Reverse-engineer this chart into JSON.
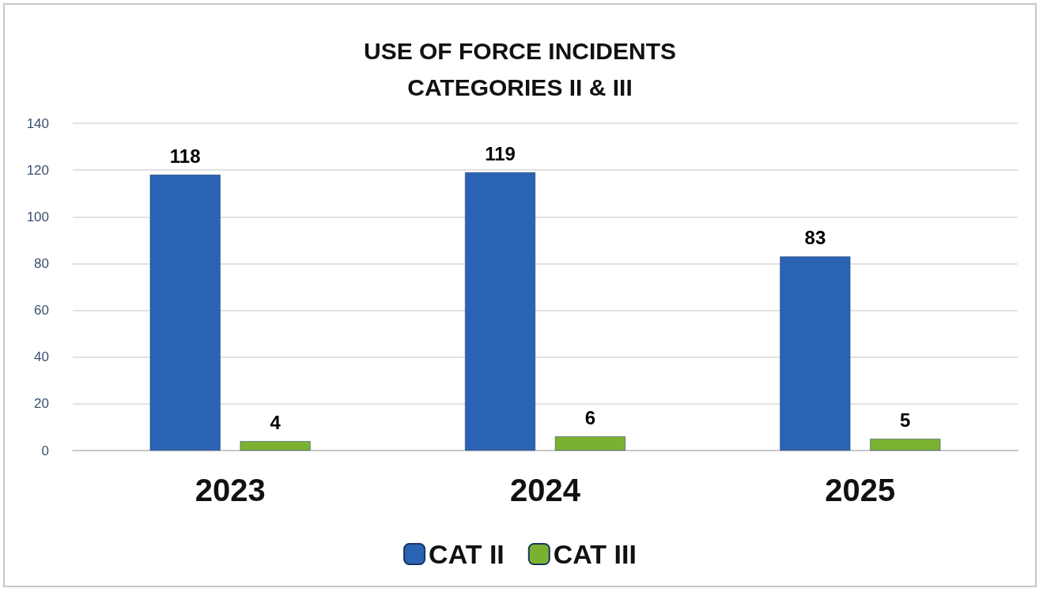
{
  "chart_data": {
    "type": "bar",
    "title": "USE OF FORCE INCIDENTS\nCATEGORIES II & III",
    "categories": [
      "2023",
      "2024",
      "2025"
    ],
    "series": [
      {
        "name": "CAT II",
        "color": "#2a63b3",
        "values": [
          118,
          119,
          83
        ]
      },
      {
        "name": "CAT III",
        "color": "#7bb131",
        "values": [
          4,
          6,
          5
        ]
      }
    ],
    "ylim": [
      0,
      140
    ],
    "yticks": [
      0,
      20,
      40,
      60,
      80,
      100,
      120,
      140
    ],
    "grid": "y",
    "legend": "bottom",
    "data_labels": true
  }
}
